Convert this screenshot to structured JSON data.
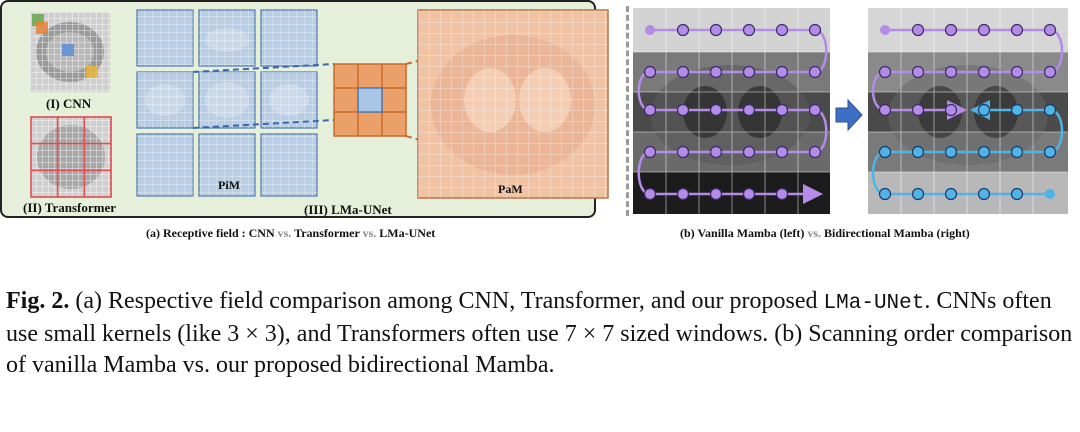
{
  "panel_a": {
    "cnn_label": "(I) CNN",
    "transformer_label": "(II) Transformer",
    "pim_label": "PiM",
    "lma_label": "(III) LMa-UNet",
    "pam_label": "PaM",
    "caption_prefix": "(a) Receptive field : CNN ",
    "caption_vs1": "vs.",
    "caption_mid": " Transformer ",
    "caption_vs2": "vs.",
    "caption_suffix": " LMa-UNet"
  },
  "panel_b": {
    "caption_prefix": "(b) Vanilla Mamba (left) ",
    "caption_vs": "vs.",
    "caption_suffix": " Bidirectional Mamba (right)"
  },
  "figure_caption": {
    "fig_label": "Fig. 2.",
    "text_1": " (a) Respective field comparison among CNN, Transformer, and our proposed ",
    "code": "LMa-UNet",
    "text_2": ". CNNs often use small kernels (like 3 × 3), and Transformers often use 7 × 7 sized windows. (b) Scanning order comparison of vanilla Mamba vs. our proposed bidirectional Mamba."
  },
  "colors": {
    "panel_bg": "#e6efd9",
    "vanilla_scan": "#b48ce8",
    "bidirectional_scan": "#4fb3e6",
    "kernel_orange": "#e2955a",
    "patch_blue": "#a9c5e6"
  },
  "icons": [
    "right-arrow-icon"
  ]
}
